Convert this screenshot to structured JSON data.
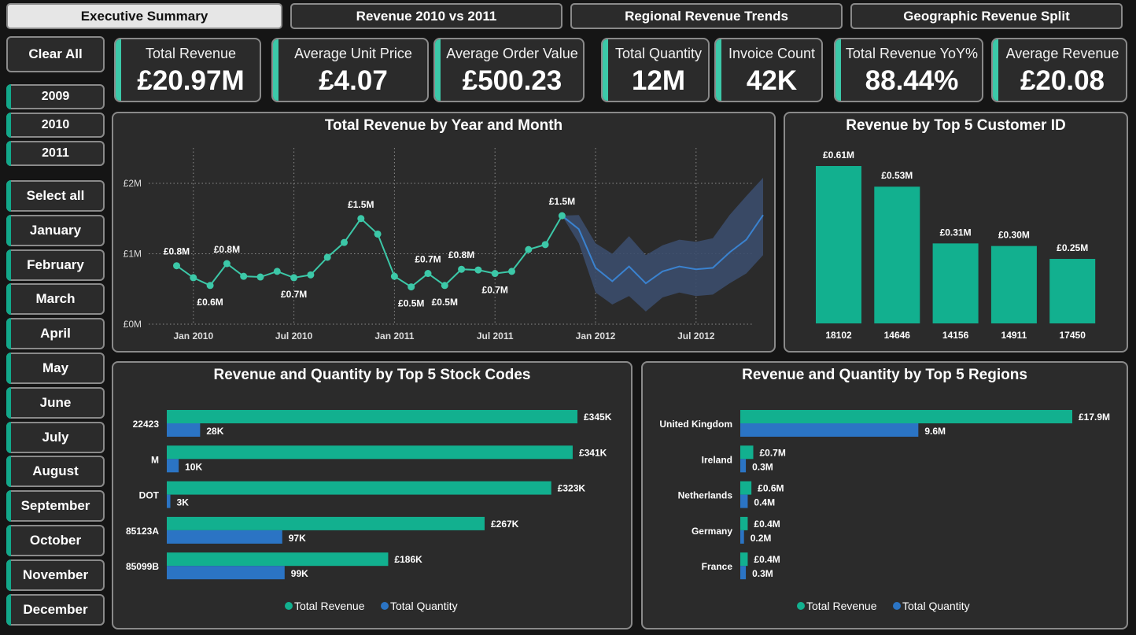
{
  "tabs": [
    {
      "label": "Executive Summary",
      "active": true
    },
    {
      "label": "Revenue 2010 vs 2011",
      "active": false
    },
    {
      "label": "Regional Revenue Trends",
      "active": false
    },
    {
      "label": "Geographic Revenue Split",
      "active": false
    }
  ],
  "slicers": {
    "clear_all": "Clear All",
    "years": [
      "2009",
      "2010",
      "2011"
    ],
    "months": [
      "Select all",
      "January",
      "February",
      "March",
      "April",
      "May",
      "June",
      "July",
      "August",
      "September",
      "October",
      "November",
      "December"
    ]
  },
  "kpis": [
    {
      "label": "Total Revenue",
      "value": "£20.97M"
    },
    {
      "label": "Average Unit Price",
      "value": "£4.07"
    },
    {
      "label": "Average Order Value",
      "value": "£500.23"
    },
    {
      "label": "Total Quantity",
      "value": "12M"
    },
    {
      "label": "Invoice Count",
      "value": "42K"
    },
    {
      "label": "Total Revenue YoY%",
      "value": "88.44%"
    },
    {
      "label": "Average Revenue",
      "value": "£20.08"
    }
  ],
  "colors": {
    "teal": "#12b08f",
    "blue": "#2b74c4",
    "line_teal": "#3cc8a8",
    "forecast_line": "#3a82cf",
    "band": "#3b4d6b",
    "panel_bg": "#2b2b2b",
    "page_bg": "#151515",
    "border": "#8a8a8a"
  },
  "chart_data": [
    {
      "type": "line",
      "title": "Total Revenue by Year and Month",
      "x_tick_labels": [
        "Jan 2010",
        "Jul 2010",
        "Jan 2011",
        "Jul 2011",
        "Jan 2012",
        "Jul 2012"
      ],
      "y_tick_labels": [
        "£0M",
        "£1M",
        "£2M"
      ],
      "ylim": [
        0,
        2
      ],
      "grid": true,
      "series": [
        {
          "name": "",
          "x": [
            "2009-12",
            "2010-01",
            "2010-02",
            "2010-03",
            "2010-04",
            "2010-05",
            "2010-06",
            "2010-07",
            "2010-08",
            "2010-09",
            "2010-10",
            "2010-11",
            "2010-12",
            "2011-01",
            "2011-02",
            "2011-03",
            "2011-04",
            "2011-05",
            "2011-06",
            "2011-07",
            "2011-08",
            "2011-09",
            "2011-10",
            "2011-11"
          ],
          "values": [
            0.83,
            0.66,
            0.55,
            0.86,
            0.68,
            0.67,
            0.75,
            0.66,
            0.7,
            0.95,
            1.16,
            1.5,
            1.28,
            0.68,
            0.53,
            0.72,
            0.55,
            0.78,
            0.77,
            0.72,
            0.75,
            1.06,
            1.13,
            1.54
          ]
        },
        {
          "name": "forecast",
          "x": [
            "2011-11",
            "2011-12",
            "2012-01",
            "2012-02",
            "2012-03",
            "2012-04",
            "2012-05",
            "2012-06",
            "2012-07",
            "2012-08",
            "2012-09",
            "2012-10",
            "2012-11"
          ],
          "values": [
            1.54,
            1.35,
            0.8,
            0.61,
            0.82,
            0.58,
            0.75,
            0.82,
            0.78,
            0.8,
            1.02,
            1.2,
            1.55
          ],
          "lower": [
            1.54,
            1.15,
            0.45,
            0.28,
            0.4,
            0.18,
            0.38,
            0.45,
            0.4,
            0.42,
            0.58,
            0.72,
            0.98
          ],
          "upper": [
            1.54,
            1.55,
            1.15,
            1.0,
            1.25,
            0.98,
            1.12,
            1.2,
            1.17,
            1.22,
            1.55,
            1.82,
            2.08
          ]
        }
      ],
      "data_labels": [
        {
          "x": "2009-12",
          "label": "£0.8M",
          "pos": "above"
        },
        {
          "x": "2010-02",
          "label": "£0.6M",
          "pos": "below"
        },
        {
          "x": "2010-03",
          "label": "£0.8M",
          "pos": "above"
        },
        {
          "x": "2010-07",
          "label": "£0.7M",
          "pos": "below"
        },
        {
          "x": "2010-11",
          "label": "£1.5M",
          "pos": "above"
        },
        {
          "x": "2011-02",
          "label": "£0.5M",
          "pos": "below"
        },
        {
          "x": "2011-03",
          "label": "£0.7M",
          "pos": "above"
        },
        {
          "x": "2011-04",
          "label": "£0.5M",
          "pos": "below"
        },
        {
          "x": "2011-05",
          "label": "£0.8M",
          "pos": "above"
        },
        {
          "x": "2011-07",
          "label": "£0.7M",
          "pos": "below"
        },
        {
          "x": "2011-11",
          "label": "£1.5M",
          "pos": "above"
        }
      ]
    },
    {
      "type": "bar",
      "title": "Revenue by Top 5 Customer ID",
      "categories": [
        "18102",
        "14646",
        "14156",
        "14911",
        "17450"
      ],
      "values": [
        0.61,
        0.53,
        0.31,
        0.3,
        0.25
      ],
      "value_labels": [
        "£0.61M",
        "£0.53M",
        "£0.31M",
        "£0.30M",
        "£0.25M"
      ],
      "ylim": [
        0,
        0.61
      ]
    },
    {
      "type": "bar",
      "orientation": "horizontal",
      "title": "Revenue and Quantity by Top 5 Stock Codes",
      "categories": [
        "22423",
        "M",
        "DOT",
        "85123A",
        "85099B"
      ],
      "series": [
        {
          "name": "Total Revenue",
          "values": [
            345,
            341,
            323,
            267,
            186
          ],
          "labels": [
            "£345K",
            "£341K",
            "£323K",
            "£267K",
            "£186K"
          ]
        },
        {
          "name": "Total Quantity",
          "values": [
            28,
            10,
            3,
            97,
            99
          ],
          "labels": [
            "28K",
            "10K",
            "3K",
            "97K",
            "99K"
          ]
        }
      ],
      "xlim": [
        0,
        345
      ],
      "legend": "bottom-center"
    },
    {
      "type": "bar",
      "orientation": "horizontal",
      "title": "Revenue and Quantity by Top 5 Regions",
      "categories": [
        "United Kingdom",
        "Ireland",
        "Netherlands",
        "Germany",
        "France"
      ],
      "series": [
        {
          "name": "Total Revenue",
          "values": [
            17.9,
            0.7,
            0.6,
            0.4,
            0.4
          ],
          "labels": [
            "£17.9M",
            "£0.7M",
            "£0.6M",
            "£0.4M",
            "£0.4M"
          ]
        },
        {
          "name": "Total Quantity",
          "values": [
            9.6,
            0.3,
            0.4,
            0.2,
            0.3
          ],
          "labels": [
            "9.6M",
            "0.3M",
            "0.4M",
            "0.2M",
            "0.3M"
          ]
        }
      ],
      "xlim": [
        0,
        17.9
      ],
      "legend": "bottom-center"
    }
  ]
}
